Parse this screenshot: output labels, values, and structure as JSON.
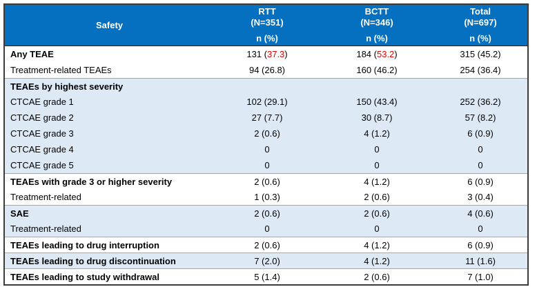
{
  "colors": {
    "header_bg": "#0570bf",
    "shaded_row": "#dde9f5",
    "highlight_red": "#e00000",
    "outer_border": "#3b3b3b",
    "section_separator": "#a6a6a6"
  },
  "header": {
    "safety_label": "Safety",
    "columns": [
      {
        "name": "RTT",
        "n": "(N=351)",
        "unit": "n (%)"
      },
      {
        "name": "BCTT",
        "n": "(N=346)",
        "unit": "n (%)"
      },
      {
        "name": "Total",
        "n": "(N=697)",
        "unit": "n (%)"
      }
    ]
  },
  "rows": [
    {
      "label": "Any TEAE",
      "bold": true,
      "indent": false,
      "shaded": false,
      "separator": false,
      "cells": [
        {
          "pre": "131 (",
          "red": "37.3",
          "post": ")"
        },
        {
          "pre": "184 (",
          "red": "53.2",
          "post": ")"
        },
        {
          "pre": "315 (45.2)"
        }
      ]
    },
    {
      "label": "Treatment-related TEAEs",
      "bold": false,
      "indent": true,
      "shaded": false,
      "separator": false,
      "cells": [
        {
          "pre": "94 (26.8)"
        },
        {
          "pre": "160 (46.2)"
        },
        {
          "pre": "254 (36.4)"
        }
      ]
    },
    {
      "label": "TEAEs by highest severity",
      "bold": true,
      "indent": false,
      "shaded": true,
      "separator": true,
      "cells": [
        {
          "pre": ""
        },
        {
          "pre": ""
        },
        {
          "pre": ""
        }
      ]
    },
    {
      "label": "CTCAE grade 1",
      "bold": false,
      "indent": true,
      "shaded": true,
      "separator": false,
      "cells": [
        {
          "pre": "102 (29.1)"
        },
        {
          "pre": "150 (43.4)"
        },
        {
          "pre": "252 (36.2)"
        }
      ]
    },
    {
      "label": "CTCAE grade 2",
      "bold": false,
      "indent": true,
      "shaded": true,
      "separator": false,
      "cells": [
        {
          "pre": "27 (7.7)"
        },
        {
          "pre": "30 (8.7)"
        },
        {
          "pre": "57 (8.2)"
        }
      ]
    },
    {
      "label": "CTCAE grade 3",
      "bold": false,
      "indent": true,
      "shaded": true,
      "separator": false,
      "cells": [
        {
          "pre": "2 (0.6)"
        },
        {
          "pre": "4 (1.2)"
        },
        {
          "pre": "6 (0.9)"
        }
      ]
    },
    {
      "label": "CTCAE grade 4",
      "bold": false,
      "indent": true,
      "shaded": true,
      "separator": false,
      "cells": [
        {
          "pre": "0"
        },
        {
          "pre": "0"
        },
        {
          "pre": "0"
        }
      ]
    },
    {
      "label": "CTCAE grade 5",
      "bold": false,
      "indent": true,
      "shaded": true,
      "separator": false,
      "cells": [
        {
          "pre": "0"
        },
        {
          "pre": "0"
        },
        {
          "pre": "0"
        }
      ]
    },
    {
      "label": "TEAEs with grade 3 or higher severity",
      "bold": true,
      "indent": false,
      "shaded": false,
      "separator": true,
      "cells": [
        {
          "pre": "2 (0.6)"
        },
        {
          "pre": "4 (1.2)"
        },
        {
          "pre": "6 (0.9)"
        }
      ]
    },
    {
      "label": "Treatment-related",
      "bold": false,
      "indent": true,
      "shaded": false,
      "separator": false,
      "cells": [
        {
          "pre": "1 (0.3)"
        },
        {
          "pre": "2 (0.6)"
        },
        {
          "pre": "3 (0.4)"
        }
      ]
    },
    {
      "label": "SAE",
      "bold": true,
      "indent": false,
      "shaded": true,
      "separator": true,
      "cells": [
        {
          "pre": "2 (0.6)"
        },
        {
          "pre": "2 (0.6)"
        },
        {
          "pre": "4 (0.6)"
        }
      ]
    },
    {
      "label": "Treatment-related",
      "bold": false,
      "indent": true,
      "shaded": true,
      "separator": false,
      "cells": [
        {
          "pre": "0"
        },
        {
          "pre": "0"
        },
        {
          "pre": "0"
        }
      ]
    },
    {
      "label": "TEAEs leading to drug interruption",
      "bold": true,
      "indent": false,
      "shaded": false,
      "separator": true,
      "cells": [
        {
          "pre": "2 (0.6)"
        },
        {
          "pre": "4 (1.2)"
        },
        {
          "pre": "6 (0.9)"
        }
      ]
    },
    {
      "label": "TEAEs leading to drug discontinuation",
      "bold": true,
      "indent": false,
      "shaded": true,
      "separator": true,
      "cells": [
        {
          "pre": "7 (2.0)"
        },
        {
          "pre": "4 (1.2)"
        },
        {
          "pre": "11 (1.6)"
        }
      ]
    },
    {
      "label": "TEAEs leading to study withdrawal",
      "bold": true,
      "indent": false,
      "shaded": false,
      "separator": true,
      "cells": [
        {
          "pre": "5 (1.4)"
        },
        {
          "pre": "2 (0.6)"
        },
        {
          "pre": "7 (1.0)"
        }
      ]
    }
  ]
}
